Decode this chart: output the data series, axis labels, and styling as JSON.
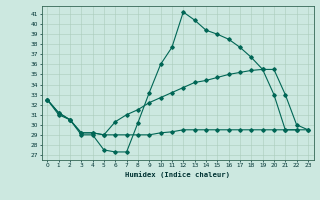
{
  "bg_color": "#cce8e0",
  "grid_color": "#aaccbb",
  "line_color": "#006655",
  "xlabel": "Humidex (Indice chaleur)",
  "xlim": [
    -0.5,
    23.5
  ],
  "ylim": [
    26.5,
    41.8
  ],
  "yticks": [
    27,
    28,
    29,
    30,
    31,
    32,
    33,
    34,
    35,
    36,
    37,
    38,
    39,
    40,
    41
  ],
  "xticks": [
    0,
    1,
    2,
    3,
    4,
    5,
    6,
    7,
    8,
    9,
    10,
    11,
    12,
    13,
    14,
    15,
    16,
    17,
    18,
    19,
    20,
    21,
    22,
    23
  ],
  "curve_top_x": [
    0,
    1,
    2,
    3,
    4,
    5,
    6,
    7,
    8,
    9,
    10,
    11,
    12,
    13,
    14,
    15,
    16,
    17,
    18,
    19,
    20,
    21,
    22
  ],
  "curve_top_y": [
    32.5,
    31.0,
    30.5,
    29.0,
    29.0,
    27.5,
    27.3,
    27.3,
    30.2,
    33.2,
    36.0,
    37.7,
    41.2,
    40.4,
    39.4,
    39.0,
    38.5,
    37.7,
    36.7,
    35.5,
    33.0,
    29.5,
    29.5
  ],
  "curve_mid_x": [
    0,
    1,
    2,
    3,
    4,
    5,
    6,
    7,
    8,
    9,
    10,
    11,
    12,
    13,
    14,
    15,
    16,
    17,
    18,
    19,
    20,
    21,
    22,
    23
  ],
  "curve_mid_y": [
    32.5,
    31.2,
    30.5,
    29.2,
    29.2,
    29.0,
    30.3,
    31.0,
    31.5,
    32.2,
    32.7,
    33.2,
    33.7,
    34.2,
    34.4,
    34.7,
    35.0,
    35.2,
    35.4,
    35.5,
    35.5,
    33.0,
    30.0,
    29.5
  ],
  "curve_bot_x": [
    0,
    1,
    2,
    3,
    4,
    5,
    6,
    7,
    8,
    9,
    10,
    11,
    12,
    13,
    14,
    15,
    16,
    17,
    18,
    19,
    20,
    21,
    22,
    23
  ],
  "curve_bot_y": [
    32.5,
    31.2,
    30.5,
    29.2,
    29.2,
    29.0,
    29.0,
    29.0,
    29.0,
    29.0,
    29.2,
    29.3,
    29.5,
    29.5,
    29.5,
    29.5,
    29.5,
    29.5,
    29.5,
    29.5,
    29.5,
    29.5,
    29.5,
    29.5
  ]
}
